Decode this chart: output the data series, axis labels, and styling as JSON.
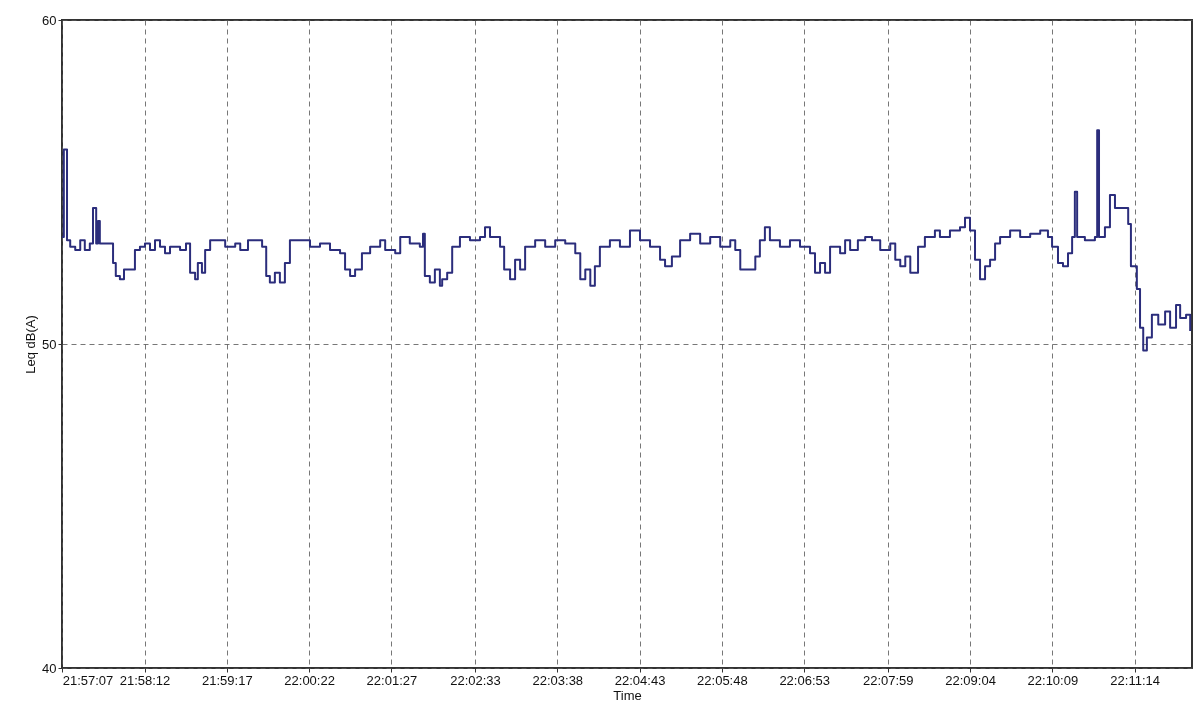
{
  "chart_data": {
    "type": "step",
    "xlabel": "Time",
    "ylabel": "Leq dB(A)",
    "grid": true,
    "ylim": [
      40,
      60
    ],
    "yticks": [
      40,
      50,
      60
    ],
    "xlim": [
      21.9519,
      22.1998
    ],
    "xticks": [
      {
        "value": 21.951944,
        "label": "21:57:07"
      },
      {
        "value": 21.97,
        "label": "21:58:12"
      },
      {
        "value": 21.988056,
        "label": "21:59:17"
      },
      {
        "value": 22.006111,
        "label": "22:00:22"
      },
      {
        "value": 22.024167,
        "label": "22:01:27"
      },
      {
        "value": 22.0425,
        "label": "22:02:33"
      },
      {
        "value": 22.060556,
        "label": "22:03:38"
      },
      {
        "value": 22.078611,
        "label": "22:04:43"
      },
      {
        "value": 22.096667,
        "label": "22:05:48"
      },
      {
        "value": 22.114722,
        "label": "22:06:53"
      },
      {
        "value": 22.133056,
        "label": "22:07:59"
      },
      {
        "value": 22.151111,
        "label": "22:09:04"
      },
      {
        "value": 22.169167,
        "label": "22:10:09"
      },
      {
        "value": 22.187222,
        "label": "22:11:14"
      }
    ],
    "series": [
      {
        "color": "#2b2d7c",
        "x": [
          21.9519,
          21.9523,
          21.953,
          21.9537,
          21.9548,
          21.9559,
          21.9569,
          21.958,
          21.9587,
          21.9594,
          21.9598,
          21.9602,
          21.9624,
          21.9631,
          21.9637,
          21.9646,
          21.9655,
          21.9668,
          21.9679,
          21.969,
          21.9701,
          21.9712,
          21.9723,
          21.9734,
          21.9745,
          21.9756,
          21.9778,
          21.9791,
          21.98,
          21.9811,
          21.9817,
          21.9826,
          21.9833,
          21.9844,
          21.9866,
          21.9877,
          21.9899,
          21.991,
          21.9927,
          21.9958,
          21.9967,
          21.9975,
          21.9986,
          21.9997,
          22.0008,
          22.0019,
          22.0041,
          22.0063,
          22.0085,
          22.0107,
          22.0129,
          22.014,
          22.0151,
          22.0162,
          22.0177,
          22.0195,
          22.0217,
          22.0228,
          22.025,
          22.0261,
          22.0282,
          22.0304,
          22.0311,
          22.0315,
          22.0326,
          22.0337,
          22.0348,
          22.0353,
          22.0364,
          22.0375,
          22.0392,
          22.0414,
          22.0436,
          22.0447,
          22.0458,
          22.048,
          22.0489,
          22.0502,
          22.0513,
          22.0524,
          22.0535,
          22.0557,
          22.0579,
          22.0601,
          22.0623,
          22.0645,
          22.0656,
          22.0667,
          22.0678,
          22.0688,
          22.0699,
          22.0721,
          22.0743,
          22.0765,
          22.0787,
          22.0809,
          22.0831,
          22.0842,
          22.0857,
          22.0875,
          22.0897,
          22.0919,
          22.0941,
          22.0963,
          22.0985,
          22.0996,
          22.1007,
          22.1029,
          22.104,
          22.105,
          22.1061,
          22.1072,
          22.1094,
          22.1116,
          22.1138,
          22.116,
          22.1171,
          22.1182,
          22.1193,
          22.1204,
          22.1226,
          22.1237,
          22.1248,
          22.1265,
          22.1281,
          22.1296,
          22.1314,
          22.1336,
          22.1347,
          22.1358,
          22.1369,
          22.138,
          22.1397,
          22.1412,
          22.1434,
          22.1445,
          22.1467,
          22.1489,
          22.15,
          22.1511,
          22.1522,
          22.1533,
          22.1544,
          22.1555,
          22.1566,
          22.1577,
          22.1599,
          22.1621,
          22.1643,
          22.1665,
          22.1682,
          22.1691,
          22.1704,
          22.1715,
          22.1726,
          22.1735,
          22.1741,
          22.1746,
          22.1763,
          22.1785,
          22.179,
          22.1794,
          22.1807,
          22.1818,
          22.1829,
          22.184,
          22.1858,
          22.1864,
          22.1873,
          22.1877,
          22.1884,
          22.1891,
          22.1899,
          22.191,
          22.1924,
          22.1939,
          22.195,
          22.1963,
          22.1972,
          22.1985,
          22.1994
        ],
        "values": [
          53.3,
          56.0,
          53.2,
          53.0,
          52.9,
          53.2,
          52.9,
          53.1,
          54.2,
          53.1,
          53.8,
          53.1,
          53.1,
          52.5,
          52.1,
          52.0,
          52.3,
          52.3,
          52.9,
          53.0,
          53.1,
          52.9,
          53.2,
          53.0,
          52.8,
          53.0,
          52.9,
          53.1,
          52.2,
          52.0,
          52.5,
          52.2,
          52.9,
          53.2,
          53.2,
          53.0,
          53.1,
          52.9,
          53.2,
          53.0,
          52.1,
          51.9,
          52.2,
          51.9,
          52.5,
          53.2,
          53.2,
          53.0,
          53.1,
          52.9,
          52.8,
          52.3,
          52.1,
          52.3,
          52.8,
          53.0,
          53.2,
          52.9,
          52.8,
          53.3,
          53.1,
          53.0,
          53.4,
          52.1,
          51.9,
          52.3,
          51.8,
          52.0,
          52.2,
          53.0,
          53.3,
          53.2,
          53.3,
          53.6,
          53.3,
          53.0,
          52.3,
          52.0,
          52.6,
          52.3,
          53.0,
          53.2,
          53.0,
          53.2,
          53.1,
          52.8,
          52.0,
          52.3,
          51.8,
          52.4,
          53.0,
          53.2,
          53.0,
          53.5,
          53.2,
          53.0,
          52.6,
          52.4,
          52.7,
          53.2,
          53.4,
          53.1,
          53.3,
          53.0,
          53.2,
          52.9,
          52.3,
          52.3,
          52.7,
          53.2,
          53.6,
          53.2,
          53.0,
          53.2,
          53.0,
          52.8,
          52.2,
          52.5,
          52.2,
          53.0,
          52.8,
          53.2,
          52.9,
          53.2,
          53.3,
          53.2,
          52.9,
          53.1,
          52.6,
          52.4,
          52.7,
          52.2,
          53.0,
          53.3,
          53.5,
          53.3,
          53.5,
          53.6,
          53.9,
          53.5,
          52.6,
          52.0,
          52.4,
          52.6,
          53.1,
          53.3,
          53.5,
          53.3,
          53.4,
          53.5,
          53.3,
          53.0,
          52.5,
          52.4,
          52.8,
          53.3,
          54.7,
          53.3,
          53.2,
          53.3,
          56.6,
          53.3,
          53.6,
          54.6,
          54.2,
          54.2,
          53.7,
          52.4,
          52.4,
          51.7,
          50.5,
          49.8,
          50.2,
          50.9,
          50.6,
          51.0,
          50.5,
          51.2,
          50.8,
          50.9,
          50.4
        ]
      }
    ]
  }
}
